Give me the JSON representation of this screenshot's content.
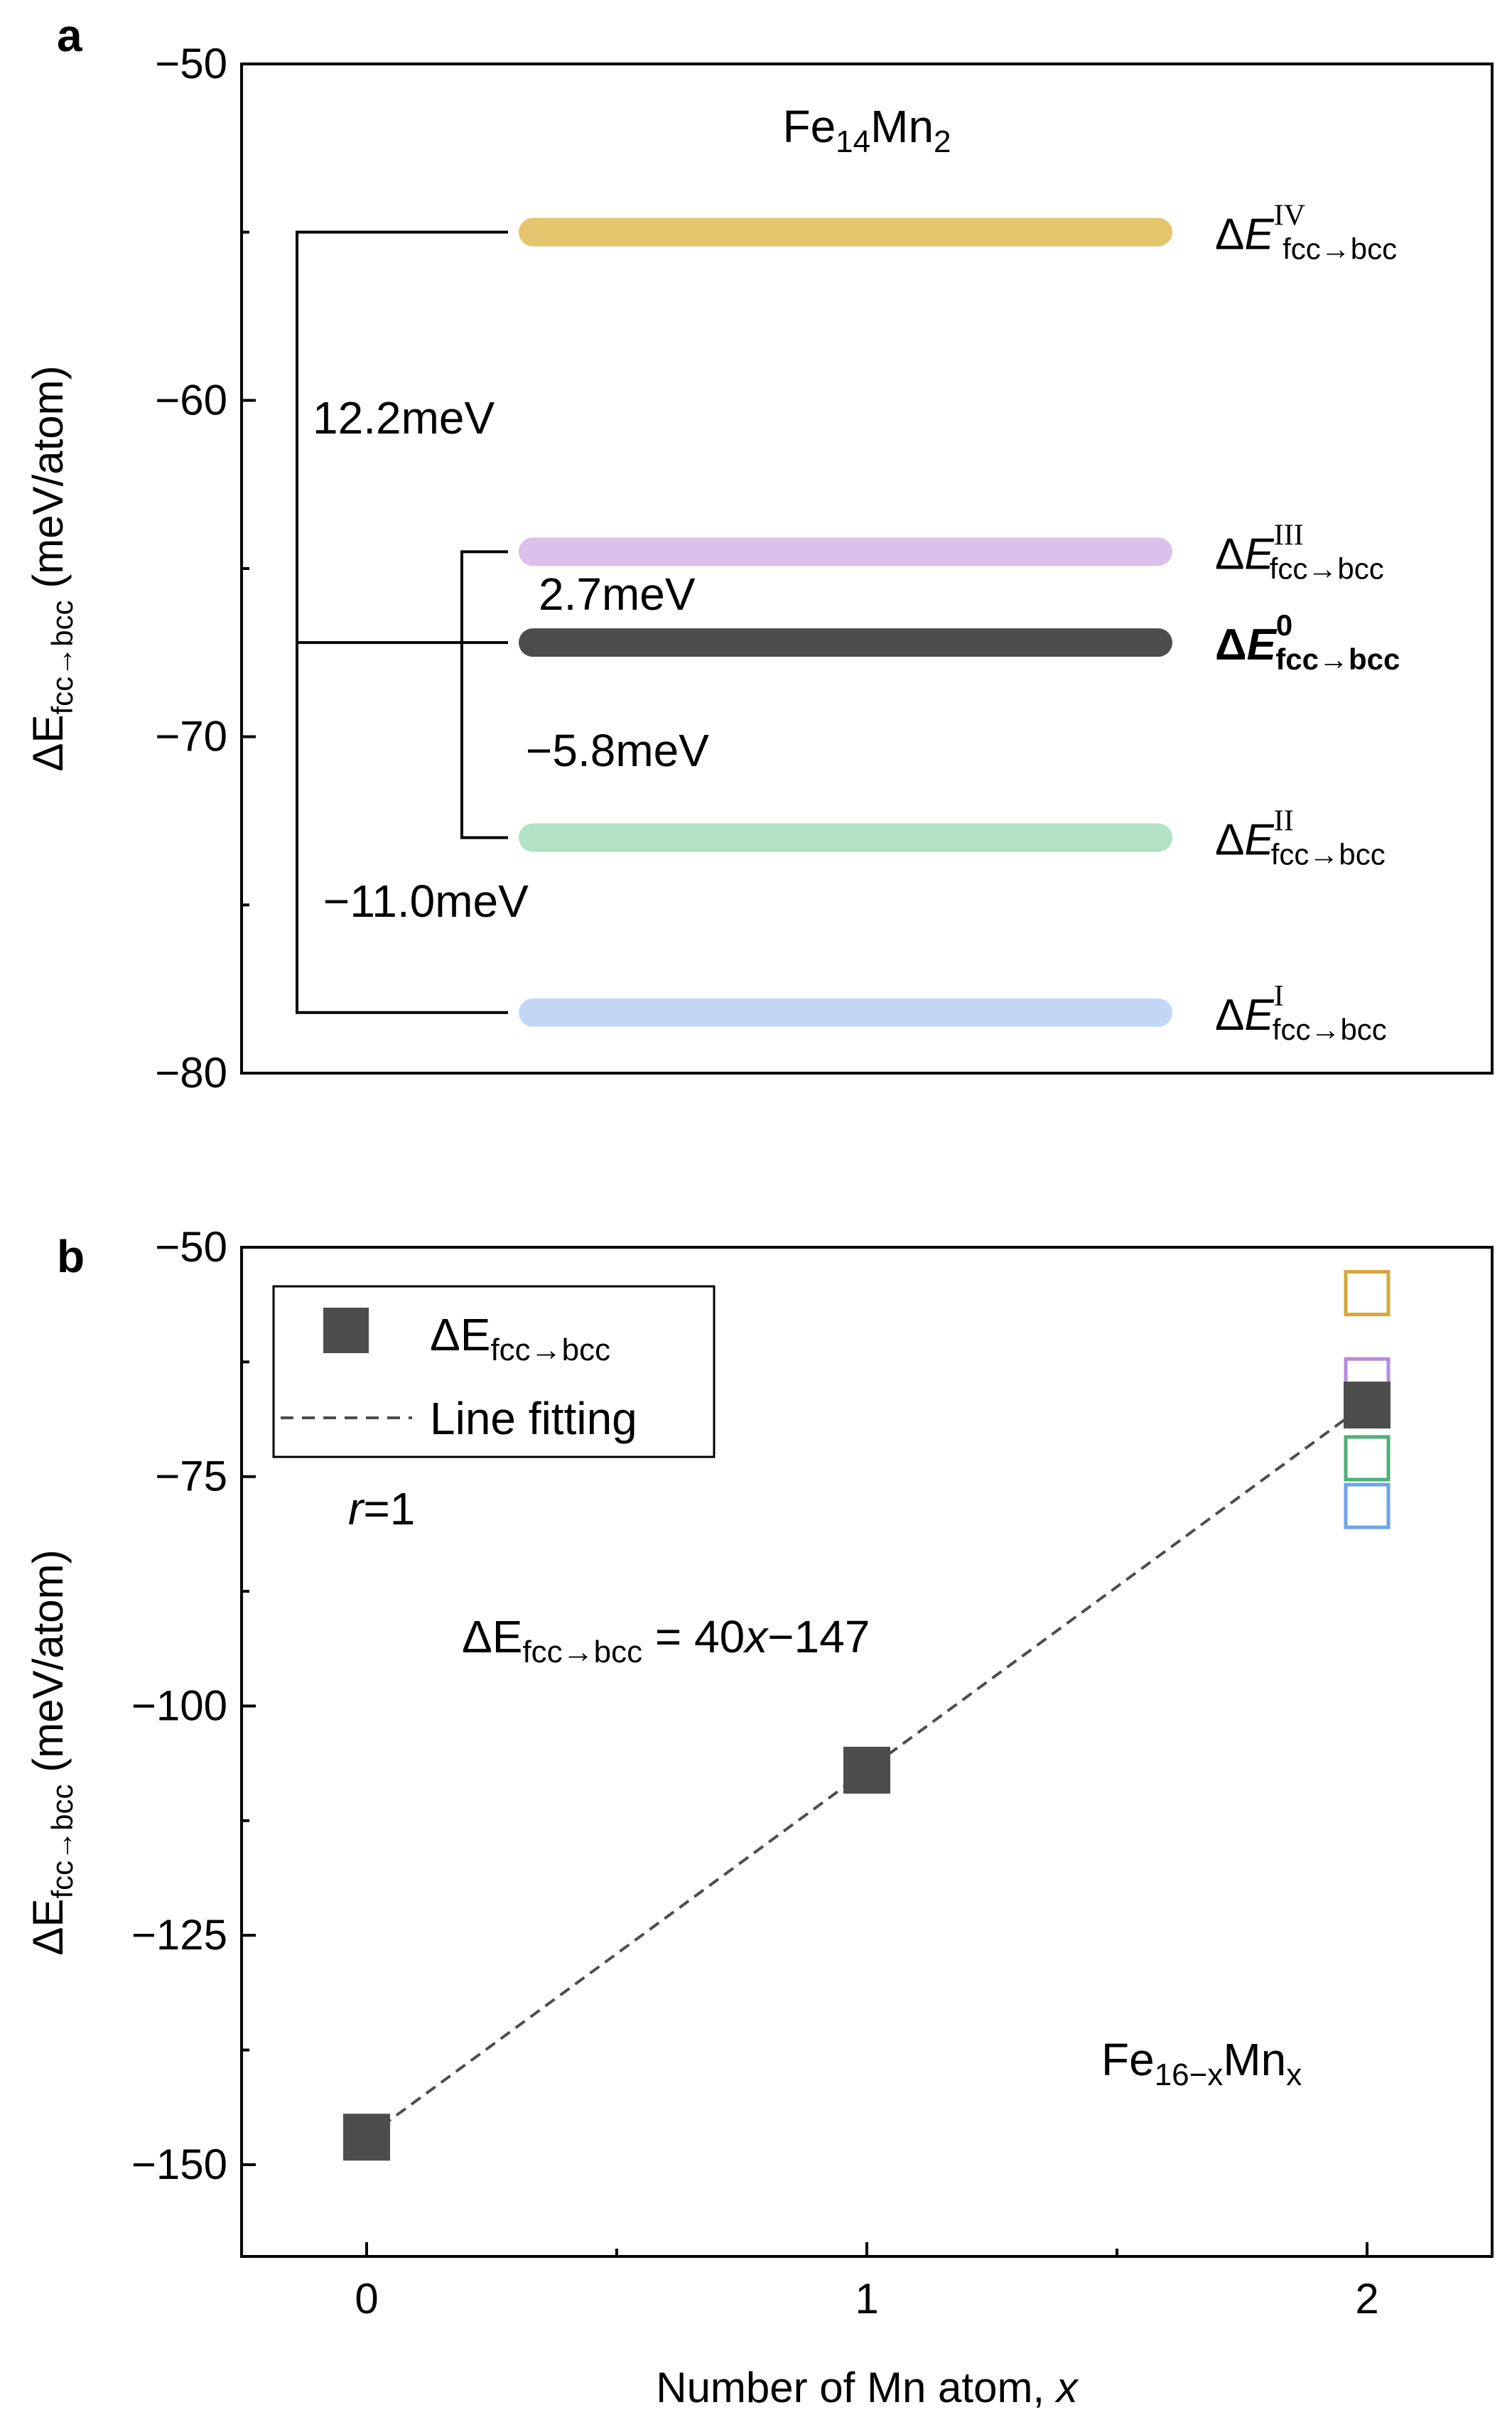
{
  "chart_data": [
    {
      "panel": "a",
      "type": "level-diagram",
      "title": "Fe14Mn2",
      "title_parts": {
        "el1": "Fe",
        "n1": "14",
        "el2": "Mn",
        "n2": "2"
      },
      "ylabel": {
        "prefix": "ΔE",
        "sub": "fcc→bcc",
        "suffix": " (meV/atom)"
      },
      "ylim": [
        -80,
        -50
      ],
      "yticks": [
        -50,
        -60,
        -70,
        -80
      ],
      "ytick_labels": [
        "−50",
        "−60",
        "−70",
        "−80"
      ],
      "levels": [
        {
          "id": "IV",
          "value": -55.0,
          "color": "#e3c56e",
          "label_main": "ΔE",
          "label_sup": "IV",
          "label_sub": "fcc→bcc",
          "bold": false
        },
        {
          "id": "III",
          "value": -64.5,
          "color": "#dcc0ec",
          "label_main": "ΔE",
          "label_sup": "III",
          "label_sub": "fcc→bcc",
          "bold": false
        },
        {
          "id": "0",
          "value": -67.2,
          "color": "#4d4d4d",
          "label_main": "ΔE",
          "label_sup": "0",
          "label_sub": "fcc→bcc",
          "bold": true
        },
        {
          "id": "II",
          "value": -73.0,
          "color": "#b2e1c3",
          "label_main": "ΔE",
          "label_sup": "II",
          "label_sub": "fcc→bcc",
          "bold": false
        },
        {
          "id": "I",
          "value": -78.2,
          "color": "#c3d7f5",
          "label_main": "ΔE",
          "label_sup": "I",
          "label_sub": "fcc→bcc",
          "bold": false
        }
      ],
      "annotations": [
        "12.2meV",
        "2.7meV",
        "−5.8meV",
        "−11.0meV"
      ]
    },
    {
      "panel": "b",
      "type": "scatter",
      "xlabel": {
        "text": "Number of Mn atom, ",
        "var": "x"
      },
      "ylabel": {
        "prefix": "ΔE",
        "sub": "fcc→bcc",
        "suffix": " (meV/atom)"
      },
      "xlim": [
        -0.25,
        2.25
      ],
      "ylim": [
        -160,
        -50
      ],
      "xticks": [
        0,
        1,
        2
      ],
      "yticks": [
        -50,
        -75,
        -100,
        -125,
        -150
      ],
      "ytick_labels": [
        "−50",
        "−75",
        "−100",
        "−125",
        "−150"
      ],
      "series": [
        {
          "name": "ΔE fcc→bcc",
          "marker": "filled-square",
          "color": "#4d4d4d",
          "x": [
            0,
            1,
            2
          ],
          "y": [
            -147,
            -107,
            -67.2
          ]
        },
        {
          "name": "Line fitting",
          "style": "dashed",
          "color": "#4d4d4d",
          "x": [
            0,
            2
          ],
          "y": [
            -147,
            -67
          ]
        }
      ],
      "open_markers": [
        {
          "x": 2,
          "y": -55.0,
          "color": "#d9a63a"
        },
        {
          "x": 2,
          "y": -64.5,
          "color": "#b98ae0"
        },
        {
          "x": 2,
          "y": -73.0,
          "color": "#4fb07a"
        },
        {
          "x": 2,
          "y": -78.2,
          "color": "#6ea4e8"
        }
      ],
      "legend": {
        "entry1": "ΔE",
        "entry1_sub": "fcc→bcc",
        "entry2": "Line fitting",
        "position": "top-left"
      },
      "annotations": {
        "r_var": "r",
        "r_val": "=1",
        "eq_prefix": "ΔE",
        "eq_sub": "fcc→bcc",
        "eq_mid": " = 40",
        "eq_var": "x",
        "eq_tail": "−147",
        "formula_el1": "Fe",
        "formula_sub1": "16−x",
        "formula_el2": "Mn",
        "formula_sub2": "x"
      }
    }
  ]
}
